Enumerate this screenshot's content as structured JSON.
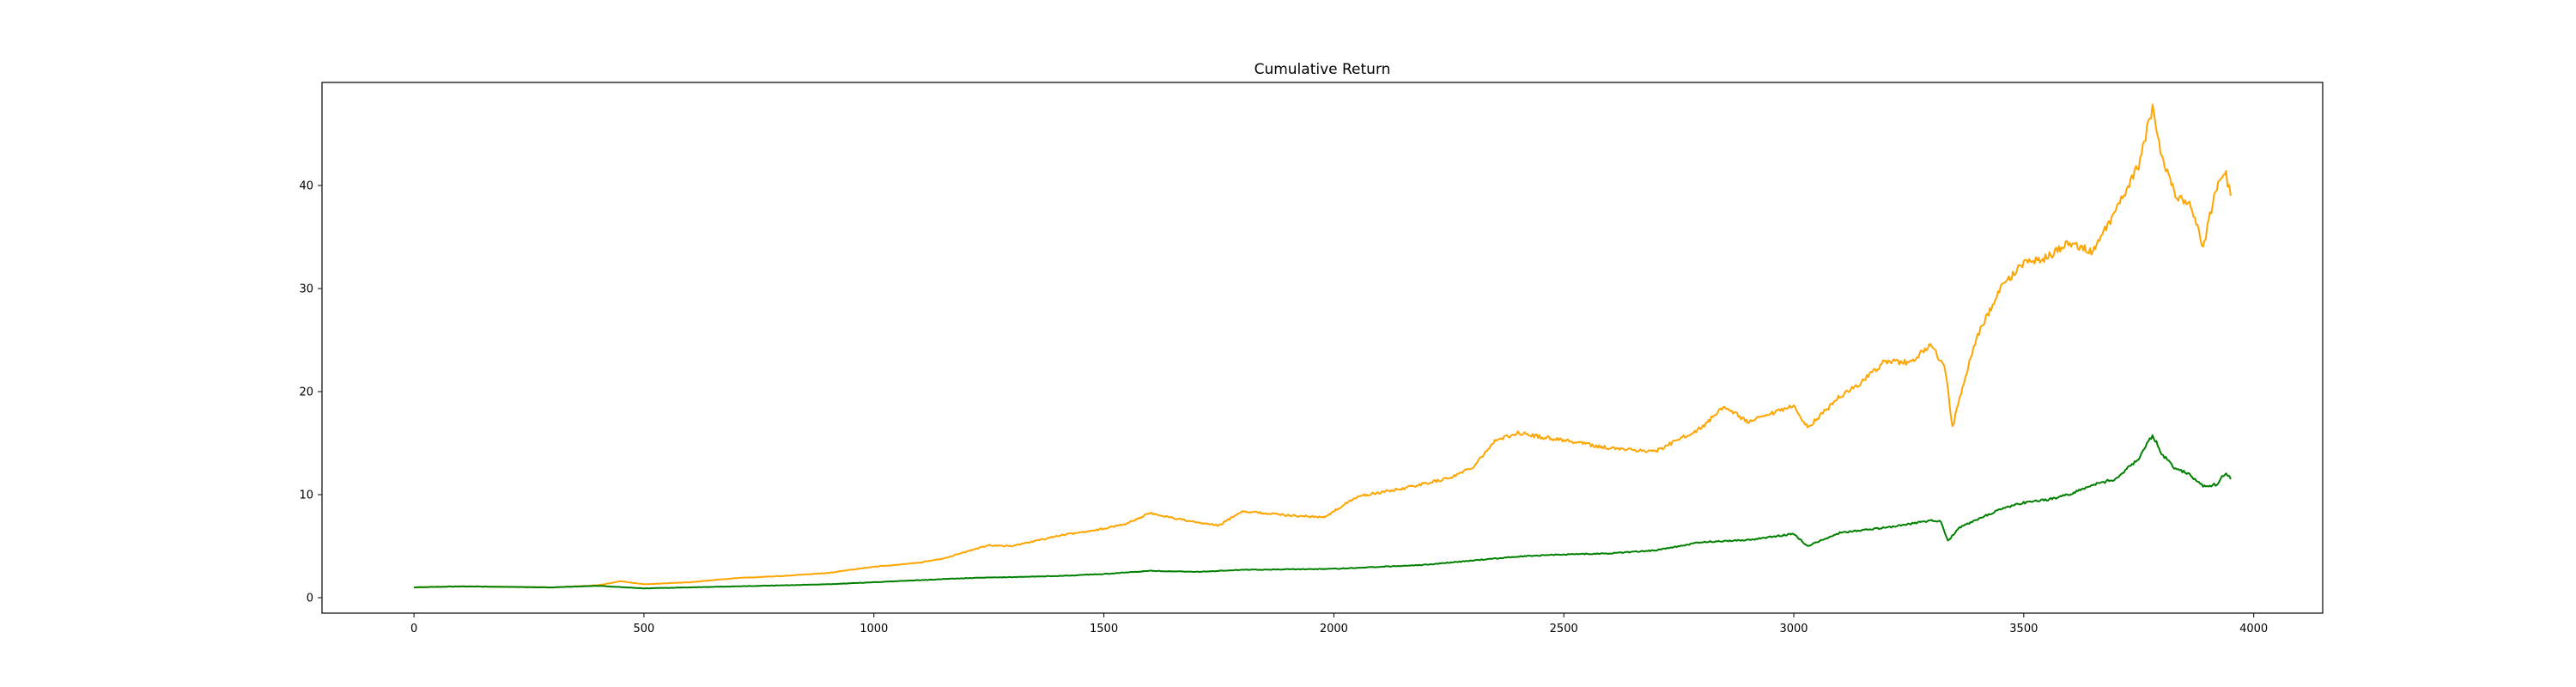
{
  "chart_data": {
    "type": "line",
    "title": "Cumulative Return",
    "xlabel": "",
    "ylabel": "",
    "xlim": [
      -200,
      4150
    ],
    "ylim": [
      -1.5,
      50
    ],
    "x_ticks": [
      0,
      500,
      1000,
      1500,
      2000,
      2500,
      3000,
      3500,
      4000
    ],
    "y_ticks": [
      0,
      10,
      20,
      30,
      40
    ],
    "grid": false,
    "legend": "none",
    "series": [
      {
        "color": "#ffa500",
        "points": [
          [
            0,
            1.0
          ],
          [
            100,
            1.1
          ],
          [
            200,
            1.05
          ],
          [
            300,
            1.0
          ],
          [
            400,
            1.2
          ],
          [
            450,
            1.6
          ],
          [
            500,
            1.3
          ],
          [
            600,
            1.5
          ],
          [
            700,
            1.9
          ],
          [
            800,
            2.1
          ],
          [
            900,
            2.4
          ],
          [
            1000,
            3.0
          ],
          [
            1100,
            3.4
          ],
          [
            1150,
            3.8
          ],
          [
            1250,
            5.1
          ],
          [
            1300,
            5.0
          ],
          [
            1400,
            6.0
          ],
          [
            1500,
            6.7
          ],
          [
            1550,
            7.2
          ],
          [
            1600,
            8.2
          ],
          [
            1700,
            7.3
          ],
          [
            1750,
            7.0
          ],
          [
            1800,
            8.4
          ],
          [
            1900,
            8.0
          ],
          [
            1980,
            7.8
          ],
          [
            2050,
            9.8
          ],
          [
            2150,
            10.6
          ],
          [
            2250,
            11.6
          ],
          [
            2300,
            12.6
          ],
          [
            2350,
            15.2
          ],
          [
            2400,
            16.0
          ],
          [
            2450,
            15.6
          ],
          [
            2500,
            15.3
          ],
          [
            2550,
            14.9
          ],
          [
            2600,
            14.5
          ],
          [
            2700,
            14.2
          ],
          [
            2800,
            16.5
          ],
          [
            2850,
            18.6
          ],
          [
            2900,
            17.0
          ],
          [
            2950,
            17.8
          ],
          [
            3000,
            18.6
          ],
          [
            3030,
            16.5
          ],
          [
            3100,
            19.5
          ],
          [
            3150,
            21.0
          ],
          [
            3200,
            23.0
          ],
          [
            3250,
            22.8
          ],
          [
            3300,
            24.5
          ],
          [
            3330,
            22.0
          ],
          [
            3345,
            16.5
          ],
          [
            3370,
            21.0
          ],
          [
            3400,
            25.5
          ],
          [
            3450,
            30.0
          ],
          [
            3500,
            32.5
          ],
          [
            3550,
            33.0
          ],
          [
            3600,
            34.5
          ],
          [
            3650,
            33.5
          ],
          [
            3700,
            37.5
          ],
          [
            3750,
            42.0
          ],
          [
            3780,
            47.5
          ],
          [
            3800,
            43.0
          ],
          [
            3830,
            39.0
          ],
          [
            3860,
            38.5
          ],
          [
            3890,
            34.0
          ],
          [
            3920,
            40.0
          ],
          [
            3940,
            41.0
          ],
          [
            3950,
            39.0
          ]
        ]
      },
      {
        "color": "#008000",
        "points": [
          [
            0,
            1.0
          ],
          [
            100,
            1.1
          ],
          [
            200,
            1.05
          ],
          [
            300,
            1.0
          ],
          [
            400,
            1.15
          ],
          [
            500,
            0.9
          ],
          [
            600,
            1.0
          ],
          [
            700,
            1.1
          ],
          [
            800,
            1.2
          ],
          [
            900,
            1.3
          ],
          [
            1000,
            1.5
          ],
          [
            1100,
            1.7
          ],
          [
            1200,
            1.9
          ],
          [
            1300,
            2.0
          ],
          [
            1400,
            2.1
          ],
          [
            1500,
            2.3
          ],
          [
            1600,
            2.6
          ],
          [
            1700,
            2.5
          ],
          [
            1800,
            2.7
          ],
          [
            1900,
            2.75
          ],
          [
            2000,
            2.8
          ],
          [
            2100,
            3.0
          ],
          [
            2200,
            3.2
          ],
          [
            2300,
            3.6
          ],
          [
            2400,
            4.0
          ],
          [
            2500,
            4.2
          ],
          [
            2600,
            4.3
          ],
          [
            2700,
            4.6
          ],
          [
            2800,
            5.4
          ],
          [
            2900,
            5.6
          ],
          [
            3000,
            6.2
          ],
          [
            3030,
            5.0
          ],
          [
            3100,
            6.3
          ],
          [
            3200,
            6.8
          ],
          [
            3300,
            7.5
          ],
          [
            3320,
            7.4
          ],
          [
            3335,
            5.5
          ],
          [
            3360,
            6.8
          ],
          [
            3400,
            7.6
          ],
          [
            3450,
            8.6
          ],
          [
            3500,
            9.2
          ],
          [
            3550,
            9.5
          ],
          [
            3600,
            10.0
          ],
          [
            3650,
            11.0
          ],
          [
            3700,
            11.5
          ],
          [
            3750,
            13.5
          ],
          [
            3780,
            15.8
          ],
          [
            3800,
            14.0
          ],
          [
            3830,
            12.5
          ],
          [
            3860,
            12.0
          ],
          [
            3890,
            10.8
          ],
          [
            3920,
            11.0
          ],
          [
            3940,
            12.2
          ],
          [
            3950,
            11.5
          ]
        ]
      }
    ]
  }
}
